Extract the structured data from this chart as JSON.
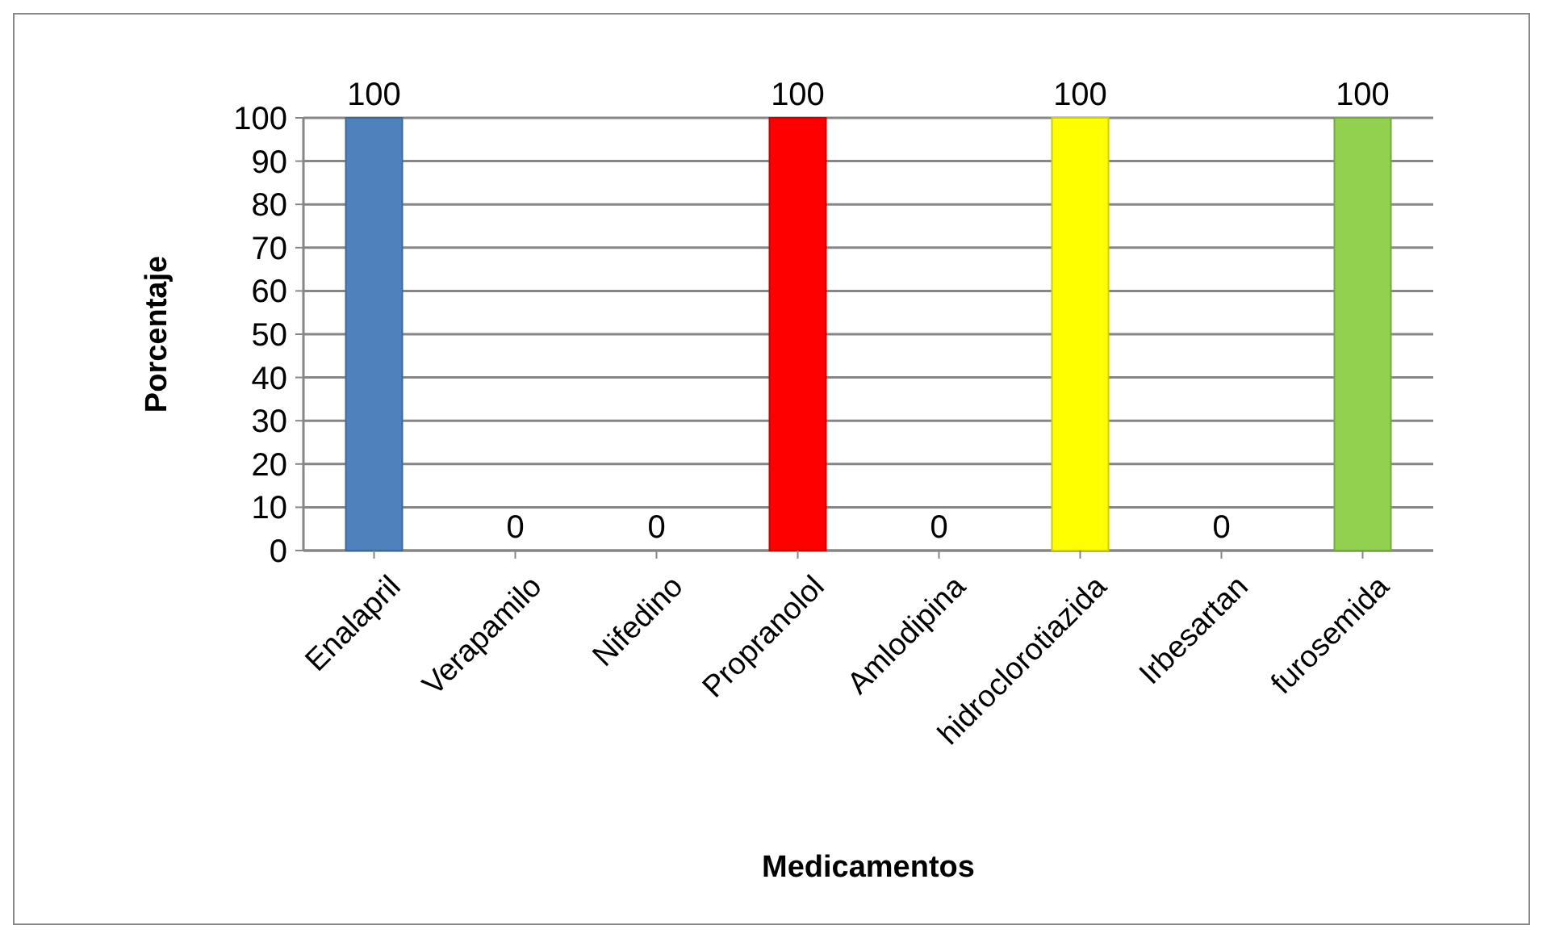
{
  "chart_data": {
    "type": "bar",
    "xlabel": "Medicamentos",
    "ylabel": "Porcentaje",
    "categories": [
      "Enalapril",
      "Verapamilo",
      "Nifedino",
      "Propranolol",
      "Amlodipina",
      "hidroclorotiazida",
      "Irbesartan",
      "furosemida"
    ],
    "values": [
      100,
      0,
      0,
      100,
      0,
      100,
      0,
      100
    ],
    "colors": [
      "#4f81bd",
      "#4f81bd",
      "#4f81bd",
      "#ff0000",
      "#4f81bd",
      "#ffff00",
      "#4f81bd",
      "#92d050"
    ],
    "ylim": [
      0,
      100
    ],
    "yticks": [
      0,
      10,
      20,
      30,
      40,
      50,
      60,
      70,
      80,
      90,
      100
    ],
    "grid": "y",
    "data_labels": true
  }
}
